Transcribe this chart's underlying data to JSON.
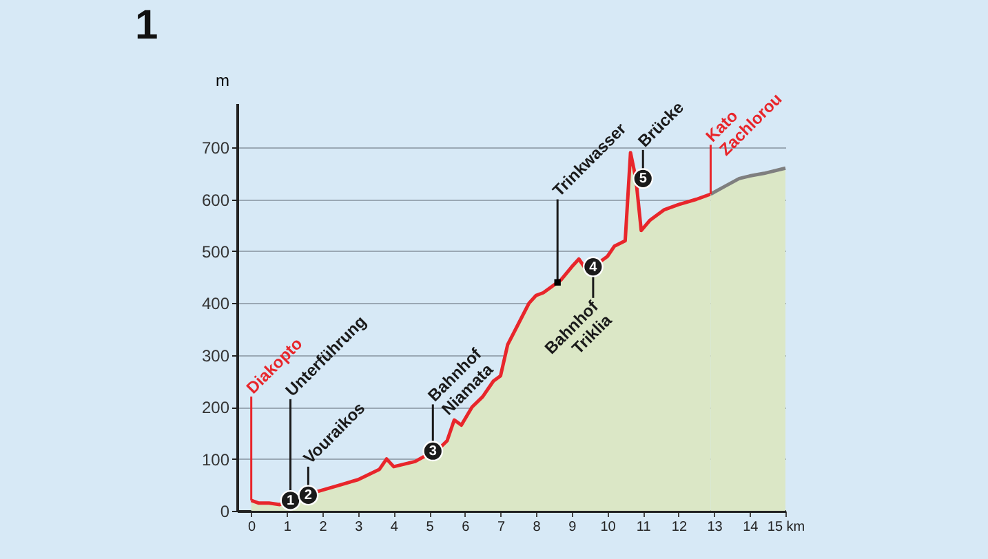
{
  "chart_data": {
    "type": "area",
    "title": "1",
    "ylabel": "m",
    "xlim": [
      -0.4,
      15
    ],
    "ylim": [
      0,
      785
    ],
    "xticks": [
      0,
      1,
      2,
      3,
      4,
      5,
      6,
      7,
      8,
      9,
      10,
      11,
      12,
      13,
      14,
      {
        "value": 15,
        "label": "15 km"
      }
    ],
    "yticks": [
      0,
      100,
      200,
      300,
      400,
      500,
      600,
      700
    ],
    "grid": "y",
    "series": [
      {
        "color": "#e8262b",
        "x": [
          0,
          0.2,
          0.5,
          0.8,
          1.1,
          1.5,
          2,
          2.5,
          3,
          3.3,
          3.6,
          3.8,
          4.0,
          4.3,
          4.6,
          5.0,
          5.2,
          5.5,
          5.7,
          5.9,
          6.2,
          6.5,
          6.8,
          7.0,
          7.2,
          7.5,
          7.8,
          8.0,
          8.2,
          8.5,
          8.7,
          9.0,
          9.2,
          9.4,
          9.7,
          10.0,
          10.2,
          10.5,
          10.65,
          10.8,
          10.95,
          11.2,
          11.6,
          12.0,
          12.5,
          12.9
        ],
        "values": [
          20,
          15,
          15,
          12,
          20,
          30,
          40,
          50,
          60,
          70,
          80,
          100,
          85,
          90,
          95,
          110,
          115,
          135,
          175,
          165,
          200,
          220,
          250,
          260,
          320,
          360,
          400,
          415,
          420,
          435,
          445,
          470,
          485,
          465,
          475,
          490,
          510,
          520,
          690,
          640,
          540,
          560,
          580,
          590,
          600,
          610
        ]
      },
      {
        "color": "#7f7f7f",
        "x": [
          12.9,
          13.3,
          13.7,
          14.0,
          14.4,
          15.0
        ],
        "values": [
          610,
          625,
          640,
          645,
          650,
          660
        ]
      },
      {
        "type": "scatter",
        "marker": "circle",
        "color": "#1a1a1a",
        "x": [
          1.1,
          1.6,
          5.1,
          9.6,
          11.0
        ],
        "values": [
          20,
          30,
          115,
          470,
          640
        ]
      },
      {
        "type": "scatter",
        "marker": "square",
        "color": "#000000",
        "x": [
          8.6
        ],
        "values": [
          440
        ]
      }
    ],
    "ref_lines": [
      {
        "axis": "x",
        "value": 0,
        "label": "Diakopto",
        "color": "#e8262b"
      },
      {
        "axis": "x",
        "value": 12.9,
        "label": "Kato Zachlorou",
        "color": "#e8262b"
      }
    ],
    "annotations": [
      {
        "text": "1",
        "x": 1.1,
        "y": 20
      },
      {
        "text": "2",
        "x": 1.6,
        "y": 30
      },
      {
        "text": "3",
        "x": 5.1,
        "y": 115
      },
      {
        "text": "4",
        "x": 9.6,
        "y": 470
      },
      {
        "text": "5",
        "x": 11.0,
        "y": 640
      },
      {
        "text": "Unterführung",
        "x": 1.1,
        "y": 20
      },
      {
        "text": "Vouraikos",
        "x": 1.6,
        "y": 30
      },
      {
        "text": "Bahnhof Niamata",
        "x": 5.1,
        "y": 115
      },
      {
        "text": "Trinkwasser",
        "x": 8.6,
        "y": 440
      },
      {
        "text": "Bahnhof Triklia",
        "x": 9.6,
        "y": 470
      },
      {
        "text": "Brücke",
        "x": 11.0,
        "y": 640
      }
    ]
  }
}
